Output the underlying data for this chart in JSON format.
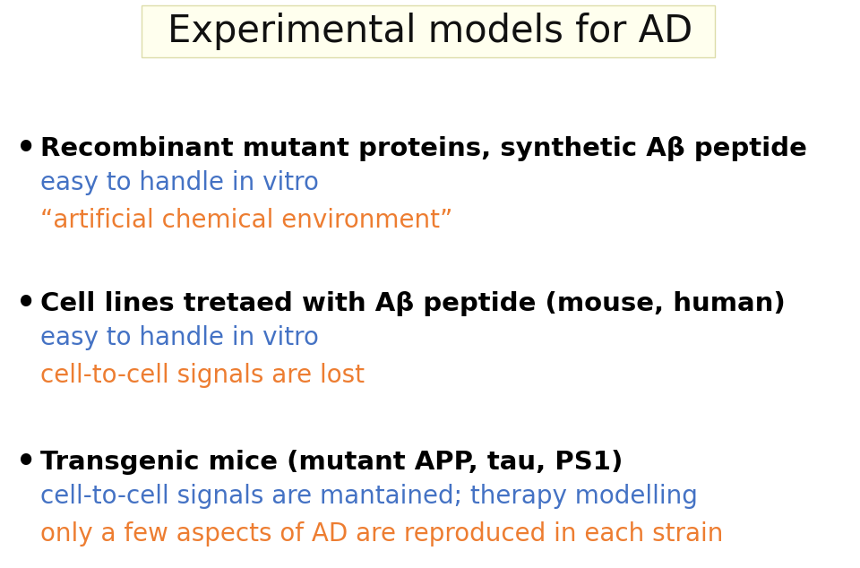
{
  "title": "Experimental models for AD",
  "title_box_color": "#ffffee",
  "title_box_edge": "#ddddaa",
  "background_color": "#ffffff",
  "items": [
    {
      "bullet_text": "Recombinant mutant proteins, synthetic Aβ peptide",
      "bullet_color": "#000000",
      "sub_lines": [
        {
          "text": "easy to handle in vitro",
          "color": "#4472c4"
        },
        {
          "text": "“artificial chemical environment”",
          "color": "#ed7d31"
        }
      ]
    },
    {
      "bullet_text": "Cell lines tretaed with Aβ peptide (mouse, human)",
      "bullet_color": "#000000",
      "sub_lines": [
        {
          "text": "easy to handle in vitro",
          "color": "#4472c4"
        },
        {
          "text": "cell-to-cell signals are lost",
          "color": "#ed7d31"
        }
      ]
    },
    {
      "bullet_text": "Transgenic mice (mutant APP, tau, PS1)",
      "bullet_color": "#000000",
      "sub_lines": [
        {
          "text": "cell-to-cell signals are mantained; therapy modelling",
          "color": "#4472c4"
        },
        {
          "text": "only a few aspects of AD are reproduced in each strain",
          "color": "#ed7d31"
        }
      ]
    }
  ],
  "title_fontsize": 30,
  "bullet_fontsize": 21,
  "sub_fontsize": 20,
  "figsize": [
    9.6,
    6.34
  ],
  "dpi": 100
}
